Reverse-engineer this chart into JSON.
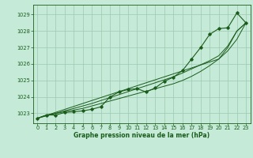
{
  "title": "Graphe pression niveau de la mer (hPa)",
  "background_color": "#c5ead8",
  "grid_color": "#9ec8b0",
  "line_color": "#1a5c1a",
  "x_ticks": [
    0,
    1,
    2,
    3,
    4,
    5,
    6,
    7,
    8,
    9,
    10,
    11,
    12,
    13,
    14,
    15,
    16,
    17,
    18,
    19,
    20,
    21,
    22,
    23
  ],
  "ylim": [
    1022.4,
    1029.6
  ],
  "yticks": [
    1023,
    1024,
    1025,
    1026,
    1027,
    1028,
    1029
  ],
  "series_with_markers": [
    [
      1022.7,
      1022.9,
      1022.9,
      1023.05,
      1023.1,
      1023.15,
      1023.25,
      1023.4,
      1024.0,
      1024.3,
      1024.45,
      1024.5,
      1024.3,
      1024.55,
      1024.95,
      1025.2,
      1025.6,
      1026.3,
      1027.0,
      1027.8,
      1028.15,
      1028.2,
      1029.1,
      1028.5
    ]
  ],
  "trend_lines": [
    [
      1022.7,
      1022.9,
      1023.0,
      1023.1,
      1023.2,
      1023.3,
      1023.45,
      1023.6,
      1023.75,
      1023.9,
      1024.05,
      1024.2,
      1024.35,
      1024.5,
      1024.65,
      1024.8,
      1025.0,
      1025.25,
      1025.55,
      1025.9,
      1026.3,
      1026.8,
      1027.5,
      1028.5
    ],
    [
      1022.7,
      1022.88,
      1023.06,
      1023.24,
      1023.42,
      1023.6,
      1023.78,
      1023.96,
      1024.14,
      1024.32,
      1024.5,
      1024.68,
      1024.86,
      1025.04,
      1025.22,
      1025.4,
      1025.58,
      1025.76,
      1025.94,
      1026.12,
      1026.3,
      1027.0,
      1028.0,
      1028.5
    ],
    [
      1022.7,
      1022.85,
      1023.0,
      1023.15,
      1023.3,
      1023.45,
      1023.6,
      1023.78,
      1023.96,
      1024.14,
      1024.32,
      1024.5,
      1024.68,
      1024.86,
      1025.04,
      1025.22,
      1025.45,
      1025.7,
      1025.95,
      1026.2,
      1026.5,
      1027.1,
      1028.0,
      1028.5
    ]
  ]
}
